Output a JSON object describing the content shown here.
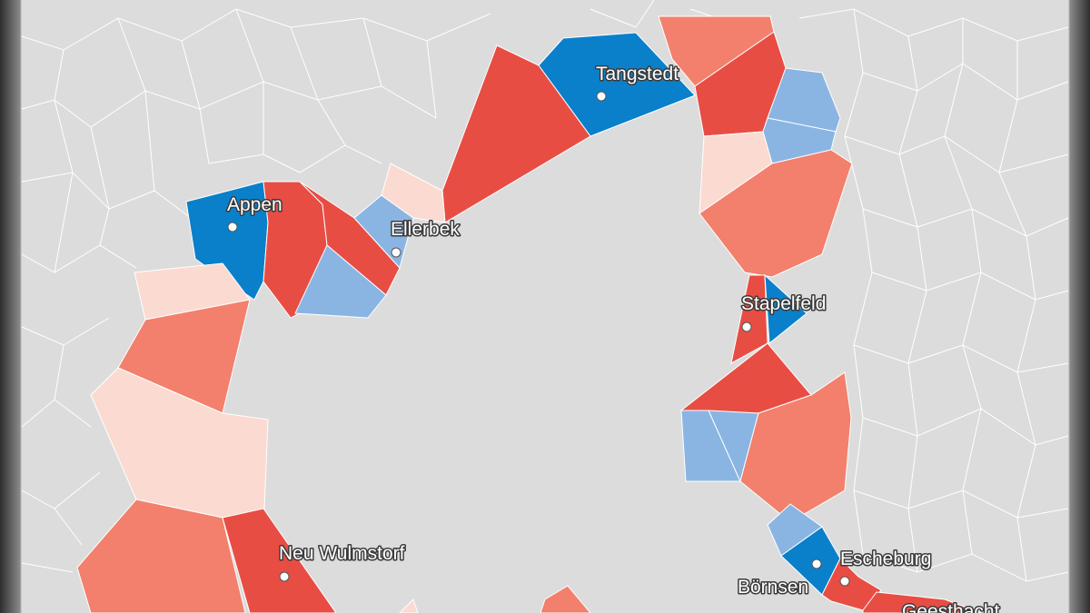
{
  "legend_colors": {
    "strong_red": "#e84d44",
    "red": "#f2806c",
    "light_red": "#fbdad1",
    "light_blue": "#8ab5e3",
    "blue": "#0a80ca",
    "neutral": "#dcdcdc",
    "border": "#ffffff"
  },
  "places": [
    {
      "name": "Tangstedt",
      "label": "Tangstedt"
    },
    {
      "name": "Appen",
      "label": "Appen"
    },
    {
      "name": "Ellerbek",
      "label": "Ellerbek"
    },
    {
      "name": "Stapelfeld",
      "label": "Stapelfeld"
    },
    {
      "name": "Neu Wulmstorf",
      "label": "Neu Wulmstorf"
    },
    {
      "name": "Escheburg",
      "label": "Escheburg"
    },
    {
      "name": "Börnsen",
      "label": "Börnsen"
    },
    {
      "name": "Geesthacht",
      "label": "Geesthacht"
    }
  ]
}
